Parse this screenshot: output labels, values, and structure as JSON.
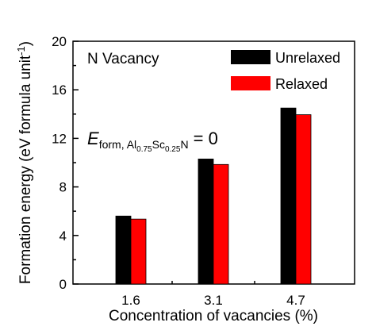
{
  "chart_data": {
    "type": "bar",
    "categories": [
      "1.6",
      "3.1",
      "4.7"
    ],
    "series": [
      {
        "name": "Unrelaxed",
        "color": "#000000",
        "values": [
          5.6,
          10.3,
          14.5
        ]
      },
      {
        "name": "Relaxed",
        "color": "#ff0000",
        "values": [
          5.35,
          9.85,
          13.95
        ]
      }
    ],
    "xlabel": "Concentration of vacancies (%)",
    "ylabel_main": "Formation energy (eV formula unit",
    "ylabel_sup": "-1",
    "ylabel_close": ")",
    "ylim": [
      0,
      20
    ],
    "yticks": [
      "0",
      "4",
      "8",
      "12",
      "16",
      "20"
    ],
    "legend_position": "top-right",
    "annotation": "N Vacancy",
    "formula": {
      "symbol": "E",
      "sub_prefix": "form, Al",
      "sub_al": "0.75",
      "sub_mid": "Sc",
      "sub_sc": "0.25",
      "sub_end": "N",
      "rhs": " = 0"
    }
  }
}
